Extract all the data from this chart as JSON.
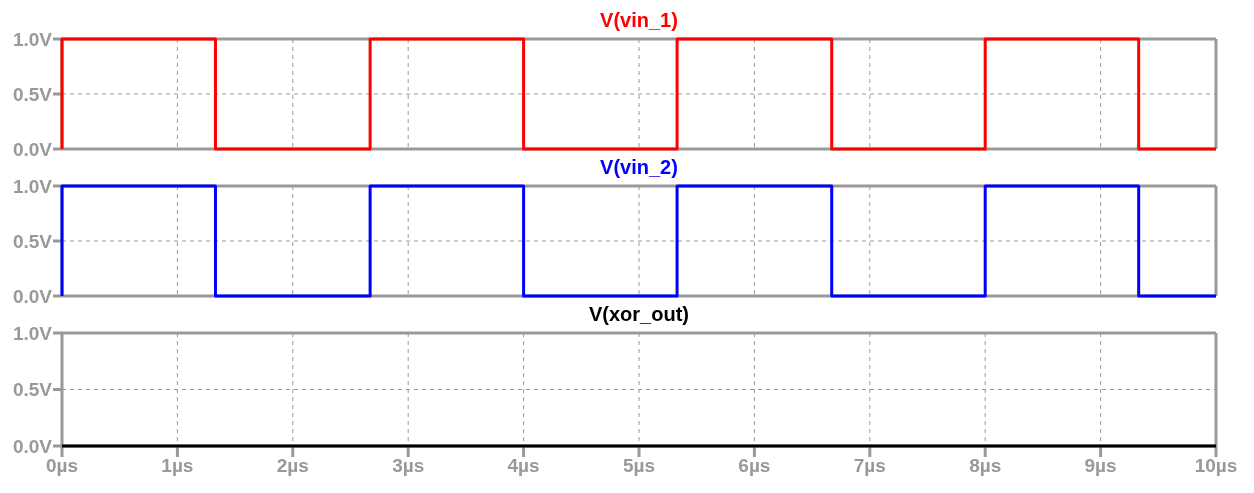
{
  "chart_data": [
    {
      "type": "step",
      "x": [
        0,
        0,
        1.33,
        2.67,
        4,
        5.33,
        6.67,
        8,
        9.33,
        10
      ],
      "series": [
        {
          "name": "V(vin_1)",
          "color": "#ff0000",
          "values": [
            0,
            1,
            0,
            1,
            0,
            1,
            0,
            1,
            0,
            0
          ]
        }
      ],
      "xlim": [
        0,
        10
      ],
      "xticks": [
        0,
        1,
        2,
        3,
        4,
        5,
        6,
        7,
        8,
        9,
        10
      ],
      "ylim": [
        0,
        1
      ],
      "yticks": [
        {
          "value": 0,
          "label": "0.0V"
        },
        {
          "value": 0.5,
          "label": "0.5V"
        },
        {
          "value": 1,
          "label": "1.0V"
        }
      ],
      "grid": true,
      "legend": "top",
      "tick_labels": "y"
    },
    {
      "type": "step",
      "x": [
        0,
        0,
        1.33,
        2.67,
        4,
        5.33,
        6.67,
        8,
        9.33,
        10
      ],
      "series": [
        {
          "name": "V(vin_2)",
          "color": "#0000ff",
          "values": [
            0,
            1,
            0,
            1,
            0,
            1,
            0,
            1,
            0,
            0
          ]
        }
      ],
      "xlim": [
        0,
        10
      ],
      "xticks": [
        0,
        1,
        2,
        3,
        4,
        5,
        6,
        7,
        8,
        9,
        10
      ],
      "ylim": [
        0,
        1
      ],
      "yticks": [
        {
          "value": 0,
          "label": "0.0V"
        },
        {
          "value": 0.5,
          "label": "0.5V"
        },
        {
          "value": 1,
          "label": "1.0V"
        }
      ],
      "grid": true,
      "legend": "top",
      "tick_labels": "y"
    },
    {
      "type": "line",
      "x": [
        0,
        10
      ],
      "series": [
        {
          "name": "V(xor_out)",
          "color": "#000000",
          "values": [
            0,
            0
          ]
        }
      ],
      "xlim": [
        0,
        10
      ],
      "xticks": [
        {
          "value": 0,
          "label": "0µs"
        },
        {
          "value": 1,
          "label": "1µs"
        },
        {
          "value": 2,
          "label": "2µs"
        },
        {
          "value": 3,
          "label": "3µs"
        },
        {
          "value": 4,
          "label": "4µs"
        },
        {
          "value": 5,
          "label": "5µs"
        },
        {
          "value": 6,
          "label": "6µs"
        },
        {
          "value": 7,
          "label": "7µs"
        },
        {
          "value": 8,
          "label": "8µs"
        },
        {
          "value": 9,
          "label": "9µs"
        },
        {
          "value": 10,
          "label": "10µs"
        }
      ],
      "ylim": [
        0,
        1
      ],
      "yticks": [
        {
          "value": 0,
          "label": "0.0V"
        },
        {
          "value": 0.5,
          "label": "0.5V"
        },
        {
          "value": 1,
          "label": "1.0V"
        }
      ],
      "grid": true,
      "legend": "top"
    }
  ]
}
